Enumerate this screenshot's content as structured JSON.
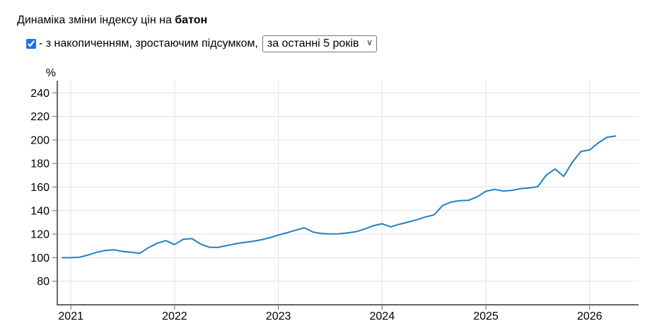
{
  "page": {
    "title_prefix": "Динаміка зміни індексу цін на ",
    "title_bold": "батон",
    "checkbox": {
      "checked": true,
      "label": "- з накопиченням, зростаючим підсумком,"
    },
    "period_select": {
      "value": "за останні 5 років",
      "options": [
        "за останні 5 років"
      ]
    }
  },
  "chart_data": {
    "type": "line",
    "title": "Динаміка зміни індексу цін на батон",
    "ylabel": "%",
    "xlabel": "",
    "grid": true,
    "legend_position": "none",
    "line_color": "#2081c3",
    "axis_color": "#666666",
    "grid_color": "#e3e3e3",
    "tick_label_color": "#000000",
    "ylim": [
      60,
      250
    ],
    "y_ticks": [
      80,
      100,
      120,
      140,
      160,
      180,
      200,
      220,
      240
    ],
    "x_year_ticks": [
      2021,
      2022,
      2023,
      2024,
      2025,
      2026
    ],
    "months": [
      "2020-12",
      "2021-01",
      "2021-02",
      "2021-03",
      "2021-04",
      "2021-05",
      "2021-06",
      "2021-07",
      "2021-08",
      "2021-09",
      "2021-10",
      "2021-11",
      "2021-12",
      "2022-01",
      "2022-02",
      "2022-03",
      "2022-04",
      "2022-05",
      "2022-06",
      "2022-07",
      "2022-08",
      "2022-09",
      "2022-10",
      "2022-11",
      "2022-12",
      "2023-01",
      "2023-02",
      "2023-03",
      "2023-04",
      "2023-05",
      "2023-06",
      "2023-07",
      "2023-08",
      "2023-09",
      "2023-10",
      "2023-11",
      "2023-12",
      "2024-01",
      "2024-02",
      "2024-03",
      "2024-04",
      "2024-05",
      "2024-06",
      "2024-07",
      "2024-08",
      "2024-09",
      "2024-10",
      "2024-11",
      "2024-12",
      "2025-01",
      "2025-02",
      "2025-03",
      "2025-04",
      "2025-05",
      "2025-06",
      "2025-07",
      "2025-08",
      "2025-09",
      "2025-10",
      "2025-11",
      "2025-12",
      "2026-01",
      "2026-02",
      "2026-03",
      "2026-04"
    ],
    "values": [
      100.0,
      100.0,
      100.4,
      102.3,
      104.6,
      106.2,
      106.7,
      105.3,
      104.6,
      103.8,
      108.6,
      112.4,
      114.5,
      111.2,
      115.6,
      116.2,
      111.6,
      108.9,
      108.7,
      110.2,
      111.8,
      112.9,
      113.8,
      115.2,
      117.0,
      119.2,
      121.2,
      123.3,
      125.4,
      121.8,
      120.5,
      120.2,
      120.3,
      121.0,
      122.1,
      124.4,
      127.2,
      128.8,
      126.2,
      128.4,
      130.3,
      132.2,
      134.6,
      136.3,
      144.3,
      147.3,
      148.4,
      148.7,
      151.8,
      156.4,
      158.0,
      156.6,
      157.2,
      158.6,
      159.2,
      160.3,
      170.3,
      175.4,
      169.0,
      181.0,
      190.3,
      191.5,
      197.5,
      202.3,
      203.3
    ]
  }
}
